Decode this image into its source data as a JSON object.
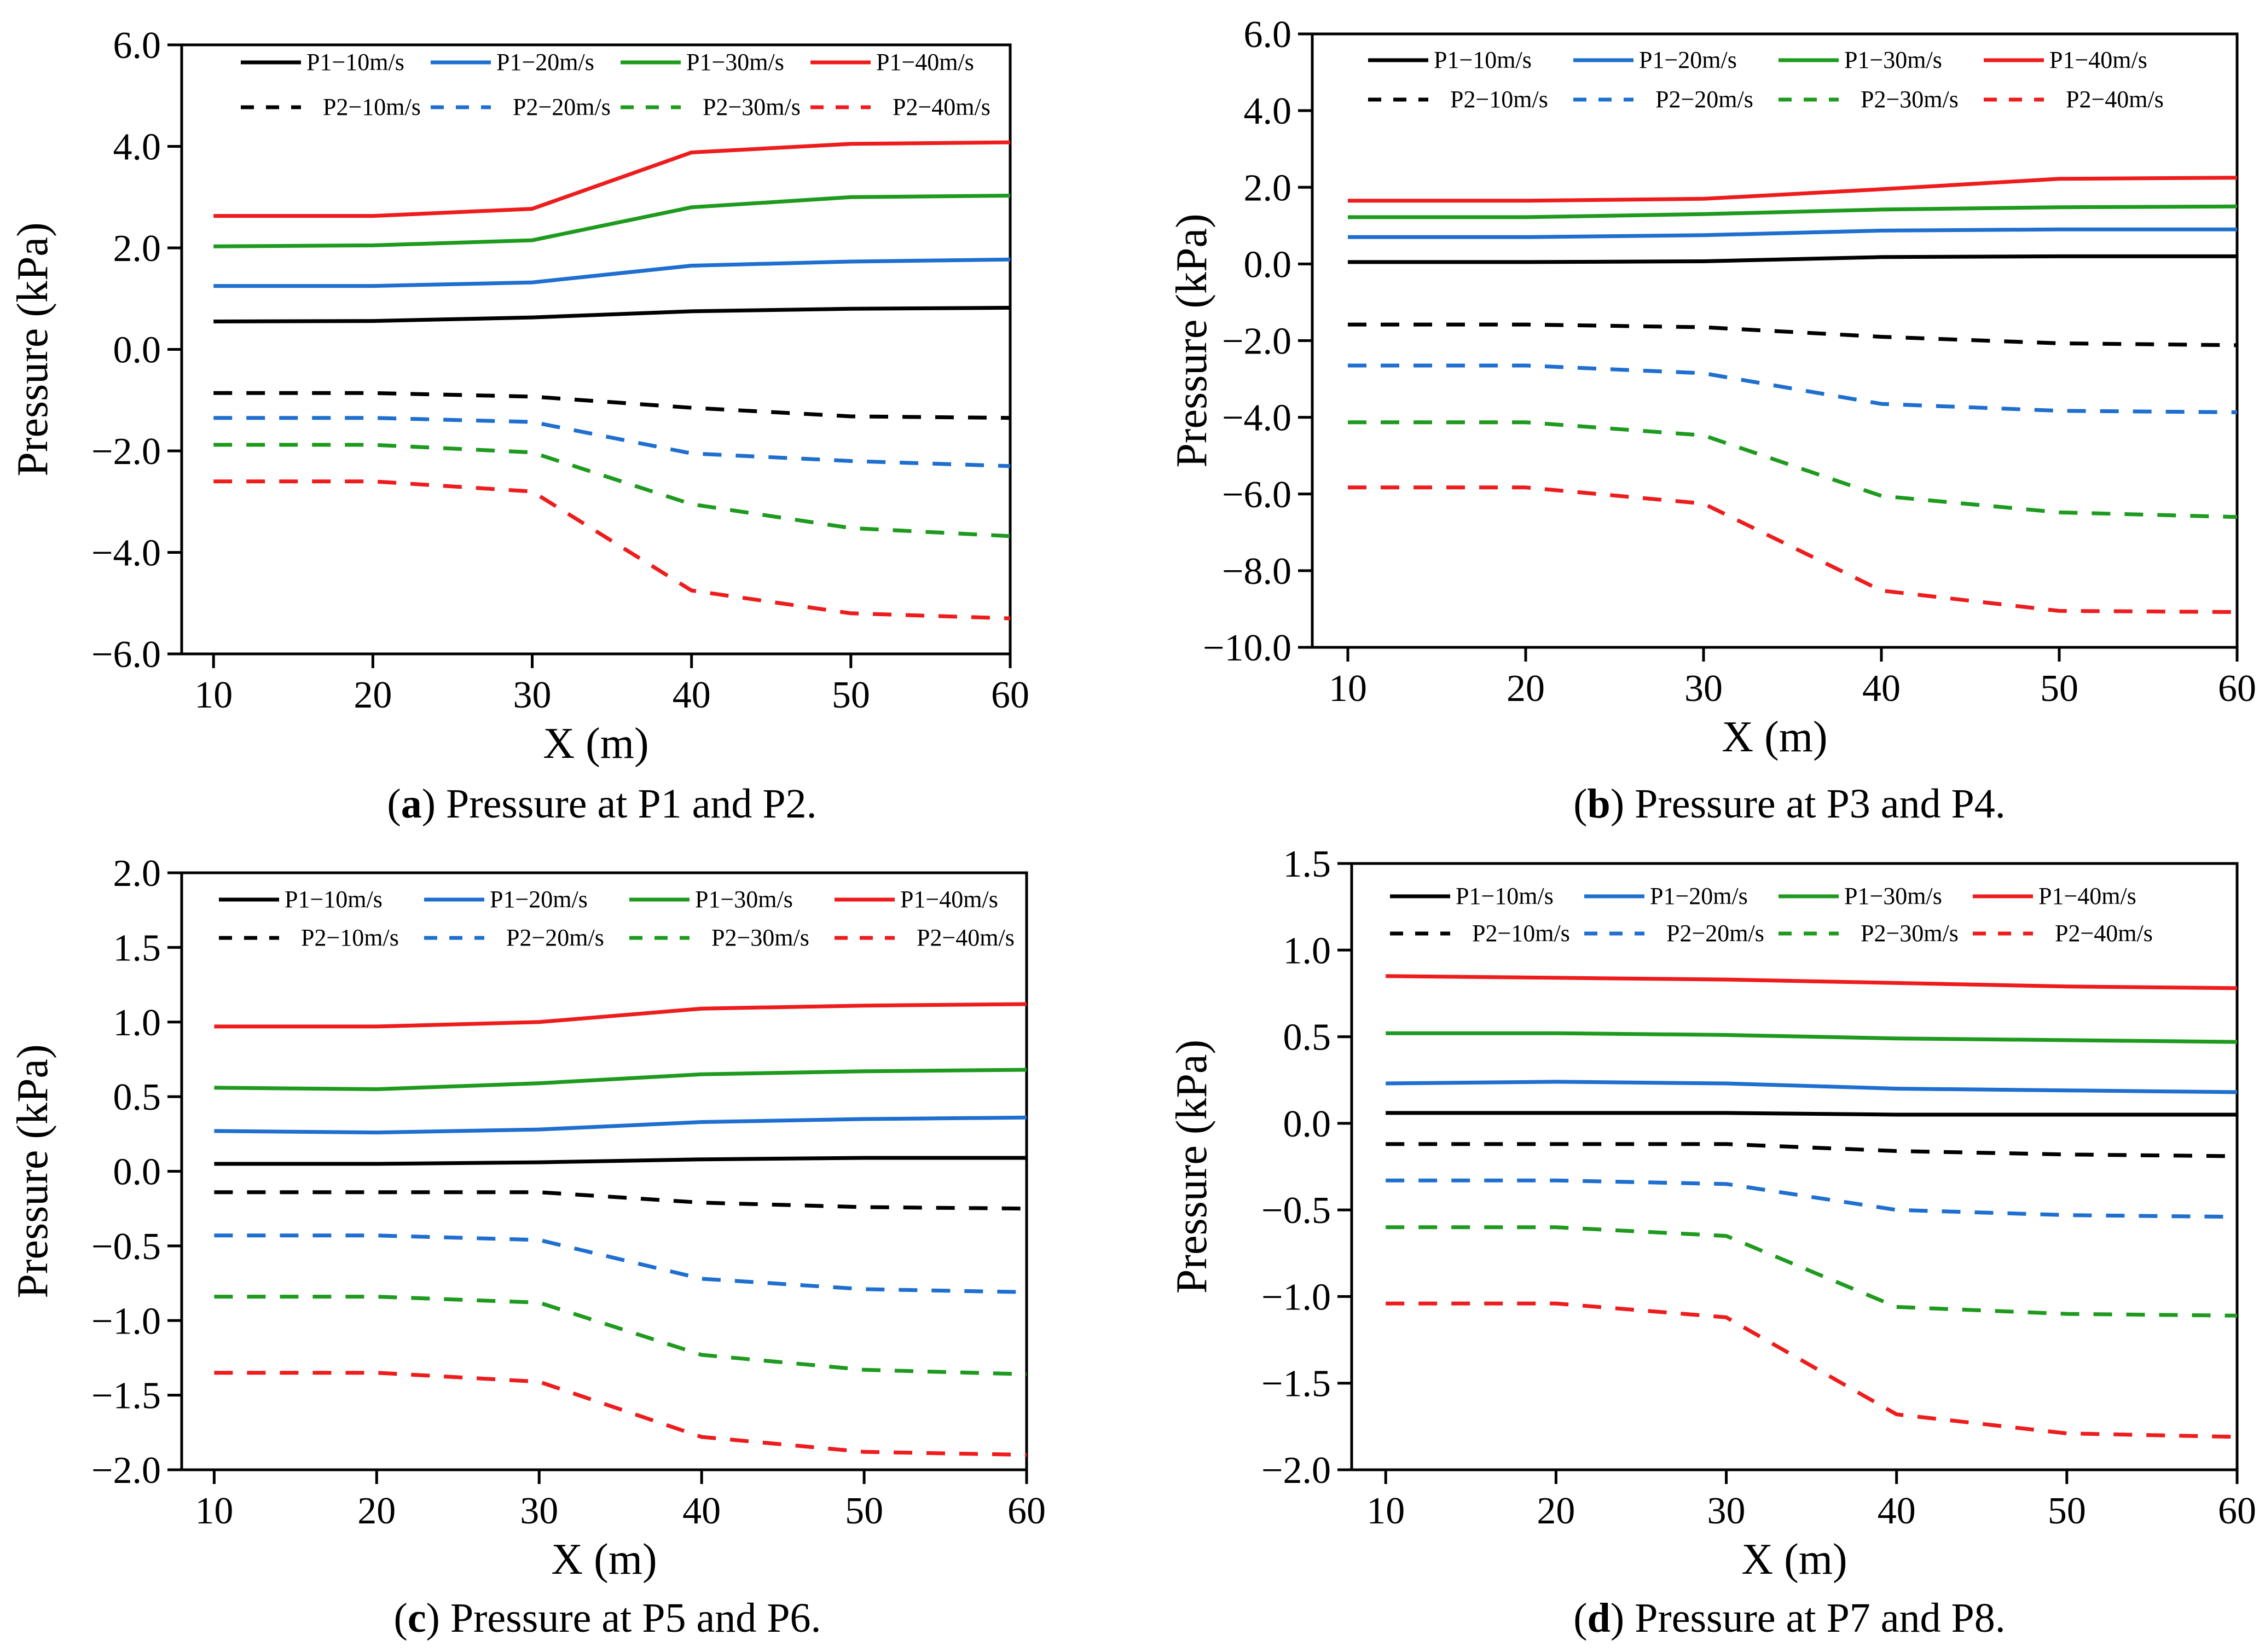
{
  "series_styles": [
    {
      "key": "p1_10",
      "color": "#000000",
      "dashed": false
    },
    {
      "key": "p1_20",
      "color": "#1f6fd0",
      "dashed": false
    },
    {
      "key": "p1_30",
      "color": "#1e9a1e",
      "dashed": false
    },
    {
      "key": "p1_40",
      "color": "#ee1c1c",
      "dashed": false
    },
    {
      "key": "p2_10",
      "color": "#000000",
      "dashed": true
    },
    {
      "key": "p2_20",
      "color": "#1f6fd0",
      "dashed": true
    },
    {
      "key": "p2_30",
      "color": "#1e9a1e",
      "dashed": true
    },
    {
      "key": "p2_40",
      "color": "#ee1c1c",
      "dashed": true
    }
  ],
  "chart_data": [
    {
      "type": "line",
      "id": "a",
      "caption": {
        "label": "a",
        "text": ") Pressure at P1 and P2."
      },
      "title": "",
      "xlabel": "X (m)",
      "ylabel": "Pressure (kPa)",
      "xlim": [
        8,
        60
      ],
      "ylim": [
        -6,
        6
      ],
      "xticks": [
        10,
        20,
        30,
        40,
        50,
        60
      ],
      "xtick_labels": [
        "10",
        "20",
        "30",
        "40",
        "50",
        "60"
      ],
      "yticks": [
        -6,
        -4,
        -2,
        0,
        2,
        4,
        6
      ],
      "ytick_labels": [
        "−6.0",
        "−4.0",
        "−2.0",
        "0.0",
        "2.0",
        "4.0",
        "6.0"
      ],
      "grid": false,
      "legend_position": "top",
      "x": [
        10,
        20,
        30,
        40,
        50,
        60
      ],
      "series": [
        {
          "name": "P1−10m/s",
          "values": [
            0.55,
            0.56,
            0.63,
            0.75,
            0.8,
            0.82
          ]
        },
        {
          "name": "P1−20m/s",
          "values": [
            1.25,
            1.25,
            1.32,
            1.65,
            1.73,
            1.77
          ]
        },
        {
          "name": "P1−30m/s",
          "values": [
            2.03,
            2.05,
            2.15,
            2.8,
            3.0,
            3.03
          ]
        },
        {
          "name": "P1−40m/s",
          "values": [
            2.63,
            2.63,
            2.77,
            3.88,
            4.05,
            4.08
          ]
        },
        {
          "name": "P2−10m/s",
          "values": [
            -0.86,
            -0.86,
            -0.93,
            -1.15,
            -1.32,
            -1.35
          ]
        },
        {
          "name": "P2−20m/s",
          "values": [
            -1.35,
            -1.35,
            -1.43,
            -2.05,
            -2.2,
            -2.3
          ]
        },
        {
          "name": "P2−30m/s",
          "values": [
            -1.88,
            -1.88,
            -2.03,
            -3.05,
            -3.52,
            -3.68
          ]
        },
        {
          "name": "P2−40m/s",
          "values": [
            -2.6,
            -2.6,
            -2.8,
            -4.75,
            -5.2,
            -5.3
          ]
        }
      ]
    },
    {
      "type": "line",
      "id": "b",
      "caption": {
        "label": "b",
        "text": ") Pressure at P3 and P4."
      },
      "title": "",
      "xlabel": "X (m)",
      "ylabel": "Pressure (kPa)",
      "xlim": [
        8,
        60
      ],
      "ylim": [
        -10,
        6
      ],
      "xticks": [
        10,
        20,
        30,
        40,
        50,
        60
      ],
      "xtick_labels": [
        "10",
        "20",
        "30",
        "40",
        "50",
        "60"
      ],
      "yticks": [
        -10,
        -8,
        -6,
        -4,
        -2,
        0,
        2,
        4,
        6
      ],
      "ytick_labels": [
        "−10.0",
        "−8.0",
        "−6.0",
        "−4.0",
        "−2.0",
        "0.0",
        "2.0",
        "4.0",
        "6.0"
      ],
      "grid": false,
      "legend_position": "top",
      "x": [
        10,
        20,
        30,
        40,
        50,
        60
      ],
      "series": [
        {
          "name": "P1−10m/s",
          "values": [
            0.05,
            0.05,
            0.07,
            0.18,
            0.2,
            0.2
          ]
        },
        {
          "name": "P1−20m/s",
          "values": [
            0.7,
            0.7,
            0.75,
            0.87,
            0.9,
            0.9
          ]
        },
        {
          "name": "P1−30m/s",
          "values": [
            1.22,
            1.22,
            1.3,
            1.42,
            1.48,
            1.5
          ]
        },
        {
          "name": "P1−40m/s",
          "values": [
            1.65,
            1.65,
            1.7,
            1.95,
            2.22,
            2.25
          ]
        },
        {
          "name": "P2−10m/s",
          "values": [
            -1.58,
            -1.58,
            -1.65,
            -1.9,
            -2.07,
            -2.12
          ]
        },
        {
          "name": "P2−20m/s",
          "values": [
            -2.65,
            -2.65,
            -2.85,
            -3.65,
            -3.83,
            -3.87
          ]
        },
        {
          "name": "P2−30m/s",
          "values": [
            -4.13,
            -4.13,
            -4.47,
            -6.05,
            -6.48,
            -6.6
          ]
        },
        {
          "name": "P2−40m/s",
          "values": [
            -5.83,
            -5.83,
            -6.25,
            -8.52,
            -9.05,
            -9.08
          ]
        }
      ]
    },
    {
      "type": "line",
      "id": "c",
      "caption": {
        "label": "c",
        "text": ") Pressure at P5 and P6."
      },
      "title": "",
      "xlabel": "X (m)",
      "ylabel": "Pressure (kPa)",
      "xlim": [
        8,
        60
      ],
      "ylim": [
        -2,
        2
      ],
      "xticks": [
        10,
        20,
        30,
        40,
        50,
        60
      ],
      "xtick_labels": [
        "10",
        "20",
        "30",
        "40",
        "50",
        "60"
      ],
      "yticks": [
        -2,
        -1.5,
        -1,
        -0.5,
        0,
        0.5,
        1,
        1.5,
        2
      ],
      "ytick_labels": [
        "−2.0",
        "−1.5",
        "−1.0",
        "−0.5",
        "0.0",
        "0.5",
        "1.0",
        "1.5",
        "2.0"
      ],
      "grid": false,
      "legend_position": "top",
      "x": [
        10,
        20,
        30,
        40,
        50,
        60
      ],
      "series": [
        {
          "name": "P1−10m/s",
          "values": [
            0.05,
            0.05,
            0.06,
            0.08,
            0.09,
            0.09
          ]
        },
        {
          "name": "P1−20m/s",
          "values": [
            0.27,
            0.26,
            0.28,
            0.33,
            0.35,
            0.36
          ]
        },
        {
          "name": "P1−30m/s",
          "values": [
            0.56,
            0.55,
            0.59,
            0.65,
            0.67,
            0.68
          ]
        },
        {
          "name": "P1−40m/s",
          "values": [
            0.97,
            0.97,
            1.0,
            1.09,
            1.11,
            1.12
          ]
        },
        {
          "name": "P2−10m/s",
          "values": [
            -0.14,
            -0.14,
            -0.14,
            -0.21,
            -0.24,
            -0.25
          ]
        },
        {
          "name": "P2−20m/s",
          "values": [
            -0.43,
            -0.43,
            -0.46,
            -0.72,
            -0.79,
            -0.81
          ]
        },
        {
          "name": "P2−30m/s",
          "values": [
            -0.84,
            -0.84,
            -0.88,
            -1.23,
            -1.33,
            -1.36
          ]
        },
        {
          "name": "P2−40m/s",
          "values": [
            -1.35,
            -1.35,
            -1.41,
            -1.78,
            -1.88,
            -1.9
          ]
        }
      ]
    },
    {
      "type": "line",
      "id": "d",
      "caption": {
        "label": "d",
        "text": ") Pressure at P7 and P8."
      },
      "title": "",
      "xlabel": "X (m)",
      "ylabel": "Pressure (kPa)",
      "xlim": [
        8,
        60
      ],
      "ylim": [
        -2,
        1.5
      ],
      "xticks": [
        10,
        20,
        30,
        40,
        50,
        60
      ],
      "xtick_labels": [
        "10",
        "20",
        "30",
        "40",
        "50",
        "60"
      ],
      "yticks": [
        -2,
        -1.5,
        -1,
        -0.5,
        0,
        0.5,
        1,
        1.5
      ],
      "ytick_labels": [
        "−2.0",
        "−1.5",
        "−1.0",
        "−0.5",
        "0.0",
        "0.5",
        "1.0",
        "1.5"
      ],
      "grid": false,
      "legend_position": "top",
      "x": [
        10,
        20,
        30,
        40,
        50,
        60
      ],
      "series": [
        {
          "name": "P1−10m/s",
          "values": [
            0.06,
            0.06,
            0.06,
            0.05,
            0.05,
            0.05
          ]
        },
        {
          "name": "P1−20m/s",
          "values": [
            0.23,
            0.24,
            0.23,
            0.2,
            0.19,
            0.18
          ]
        },
        {
          "name": "P1−30m/s",
          "values": [
            0.52,
            0.52,
            0.51,
            0.49,
            0.48,
            0.47
          ]
        },
        {
          "name": "P1−40m/s",
          "values": [
            0.85,
            0.84,
            0.83,
            0.81,
            0.79,
            0.78
          ]
        },
        {
          "name": "P2−10m/s",
          "values": [
            -0.12,
            -0.12,
            -0.12,
            -0.16,
            -0.18,
            -0.19
          ]
        },
        {
          "name": "P2−20m/s",
          "values": [
            -0.33,
            -0.33,
            -0.35,
            -0.5,
            -0.53,
            -0.54
          ]
        },
        {
          "name": "P2−30m/s",
          "values": [
            -0.6,
            -0.6,
            -0.65,
            -1.06,
            -1.1,
            -1.11
          ]
        },
        {
          "name": "P2−40m/s",
          "values": [
            -1.04,
            -1.04,
            -1.12,
            -1.68,
            -1.79,
            -1.81
          ]
        }
      ]
    }
  ]
}
